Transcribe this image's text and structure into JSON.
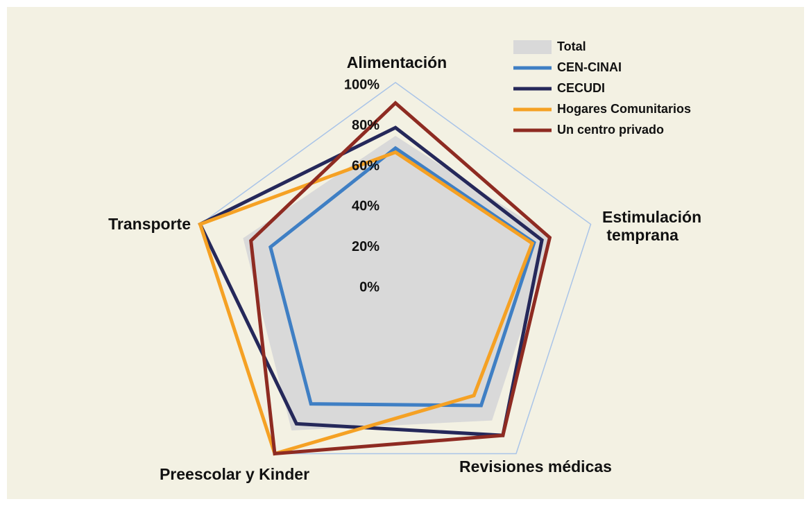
{
  "chart_data": {
    "type": "radar",
    "categories": [
      "Alimentación",
      "Estimulación temprana",
      "Revisiones médicas",
      "Preescolar y Kinder",
      "Transporte"
    ],
    "series": [
      {
        "name": "Total",
        "color": "#d9d9d9",
        "values": [
          74,
          80,
          80,
          86,
          78
        ]
      },
      {
        "name": "CEN-CINAI",
        "color": "#3f7fc4",
        "values": [
          68,
          71,
          71,
          70,
          64
        ]
      },
      {
        "name": "CECUDI",
        "color": "#25285a",
        "values": [
          78,
          75,
          89,
          82,
          100
        ]
      },
      {
        "name": "Hogares Comunitarios",
        "color": "#f5a124",
        "values": [
          66,
          70,
          65,
          100,
          100
        ]
      },
      {
        "name": "Un centro privado",
        "color": "#8e2b22",
        "values": [
          90,
          79,
          89,
          100,
          74
        ]
      }
    ],
    "ylim": [
      0,
      100
    ],
    "yticks": [
      {
        "value": 0,
        "label": "0%"
      },
      {
        "value": 20,
        "label": "20%"
      },
      {
        "value": 40,
        "label": "40%"
      },
      {
        "value": 60,
        "label": "60%"
      },
      {
        "value": 80,
        "label": "80%"
      },
      {
        "value": 100,
        "label": "100%"
      }
    ]
  }
}
